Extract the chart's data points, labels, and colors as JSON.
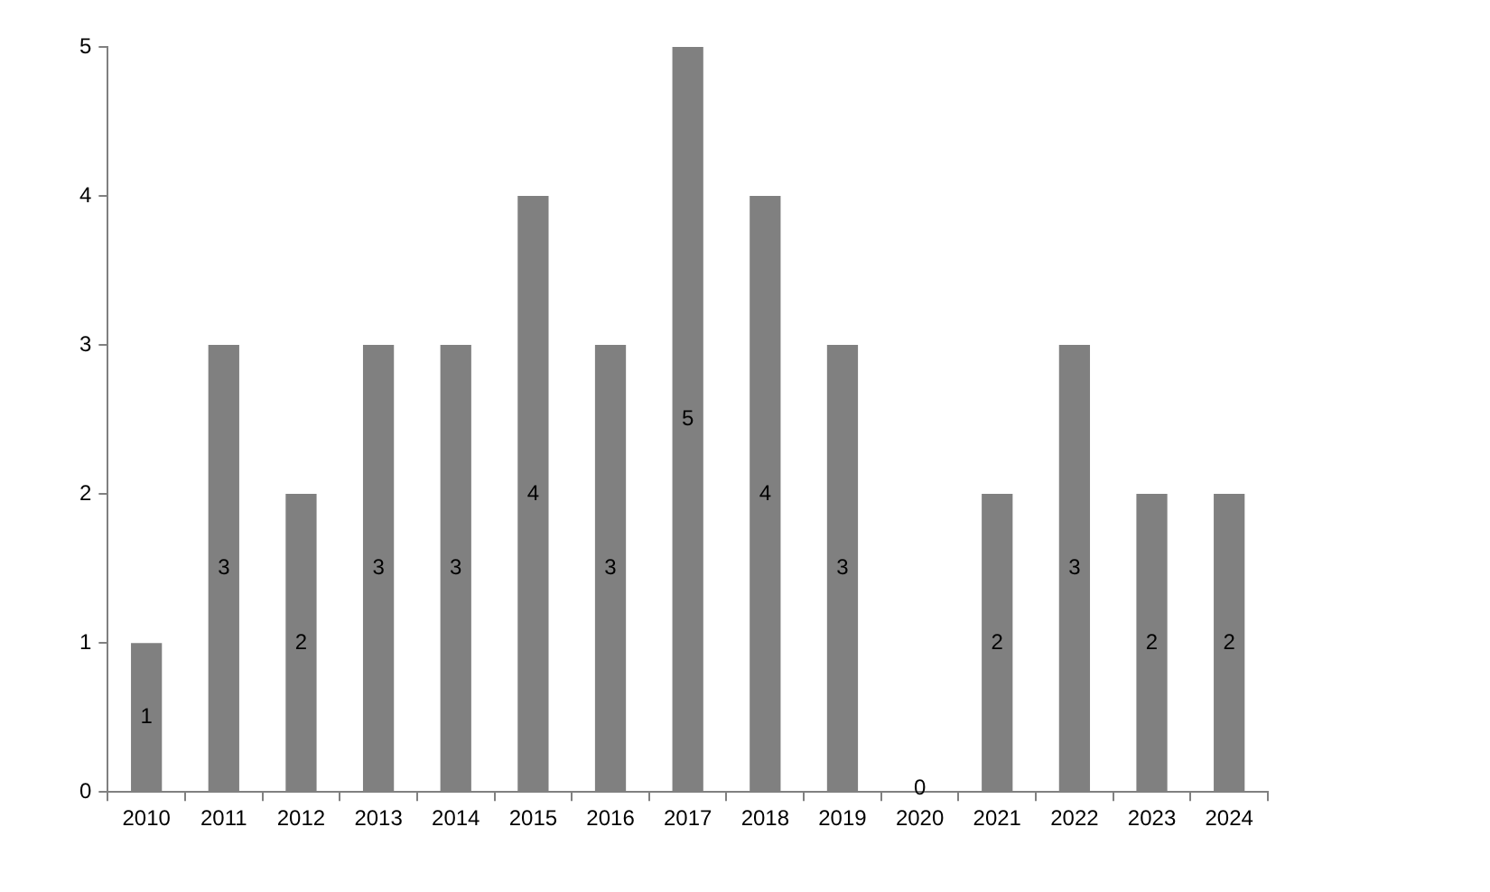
{
  "chart_data": {
    "type": "bar",
    "categories": [
      "2010",
      "2011",
      "2012",
      "2013",
      "2014",
      "2015",
      "2016",
      "2017",
      "2018",
      "2019",
      "2020",
      "2021",
      "2022",
      "2023",
      "2024"
    ],
    "values": [
      1,
      3,
      2,
      3,
      3,
      4,
      3,
      5,
      4,
      3,
      0,
      2,
      3,
      2,
      2
    ],
    "color": "#808080",
    "ylim": [
      0,
      5
    ],
    "yticks": [
      0,
      1,
      2,
      3,
      4,
      5
    ],
    "grid": false,
    "legend": false,
    "data_labels": true
  }
}
